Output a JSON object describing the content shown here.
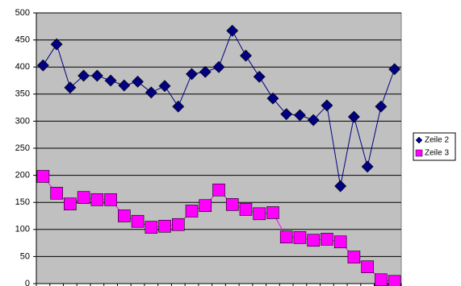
{
  "chart_data": {
    "type": "line",
    "categories": [
      null,
      null,
      null,
      null,
      null,
      null,
      null,
      null,
      null,
      null,
      null,
      null,
      null,
      null,
      null,
      null,
      null,
      null,
      null,
      null,
      null,
      null,
      null,
      null,
      null,
      null,
      null
    ],
    "series": [
      {
        "name": "Zeile 2",
        "color": "#000080",
        "marker": "diamond",
        "values": [
          403,
          442,
          362,
          384,
          384,
          375,
          366,
          373,
          353,
          365,
          327,
          387,
          391,
          400,
          467,
          421,
          382,
          342,
          313,
          311,
          302,
          329,
          180,
          308,
          216,
          327,
          396
        ]
      },
      {
        "name": "Zeile 3",
        "color": "#ff00ff",
        "marker": "square",
        "values": [
          198,
          167,
          147,
          159,
          155,
          155,
          125,
          115,
          104,
          106,
          109,
          134,
          144,
          173,
          146,
          137,
          129,
          131,
          86,
          85,
          80,
          82,
          77,
          49,
          31,
          7,
          4
        ]
      }
    ],
    "ylim": [
      0,
      500
    ],
    "yticks": [
      0,
      50,
      100,
      150,
      200,
      250,
      300,
      350,
      400,
      450,
      500
    ],
    "grid": true,
    "legend": "right",
    "plot_background": "#c0c0c0"
  }
}
